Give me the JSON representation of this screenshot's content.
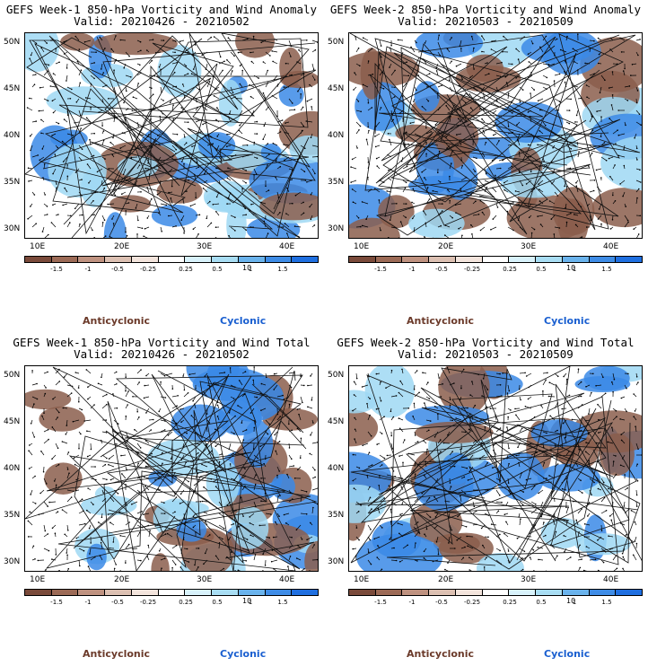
{
  "panels": [
    {
      "title": "GEFS Week-1 850-hPa Vorticity and Wind Anomaly",
      "valid": "Valid: 20210426 - 20210502",
      "seed": 11
    },
    {
      "title": "GEFS Week-2 850-hPa Vorticity and Wind Anomaly",
      "valid": "Valid: 20210503 - 20210509",
      "seed": 23
    },
    {
      "title": "GEFS Week-1 850-hPa Vorticity and Wind Total",
      "valid": "Valid: 20210426 - 20210502",
      "seed": 37
    },
    {
      "title": "GEFS Week-2 850-hPa Vorticity and Wind Total",
      "valid": "Valid: 20210503 - 20210509",
      "seed": 53
    }
  ],
  "lat_labels": [
    "50N",
    "45N",
    "40N",
    "35N",
    "30N"
  ],
  "lon_labels": [
    "10E",
    "20E",
    "30E",
    "40E"
  ],
  "colorbar": {
    "ticks": [
      "-1.5",
      "-1",
      "-0.5",
      "-0.25",
      "0.25",
      "0.5",
      "1",
      "1.5"
    ],
    "unit": "10",
    "colors": [
      "#7a4a3a",
      "#9c6a56",
      "#bf9280",
      "#dcc0b2",
      "#f3e4dc",
      "#ffffff",
      "#d8f2fb",
      "#a8ddf3",
      "#6ab3ec",
      "#3e8ce6",
      "#1f6fe0"
    ]
  },
  "legend": {
    "anticyclonic": "Anticyclonic",
    "cyclonic": "Cyclonic"
  },
  "colors": {
    "anticyclonic": "#6b3a2a",
    "cyclonic": "#1a5fd0",
    "brown": "#8b5e4c",
    "blue": "#3b8ae6",
    "light_blue": "#9fd8f3"
  }
}
